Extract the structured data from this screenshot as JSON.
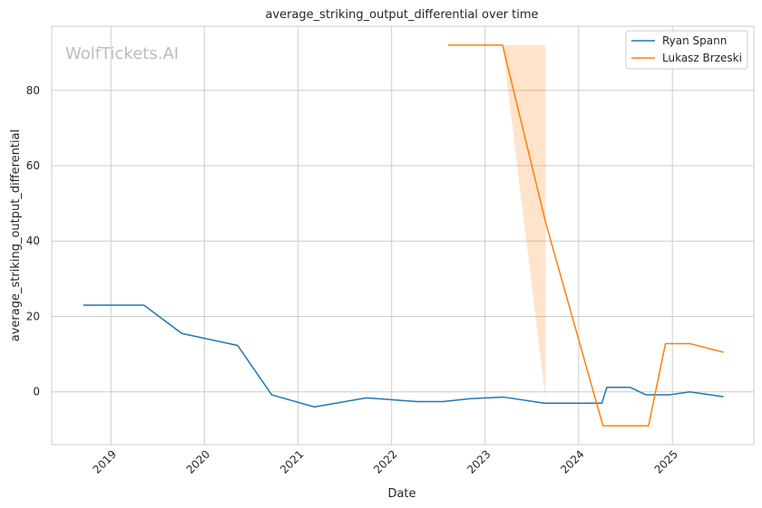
{
  "watermark": "WolfTickets.AI",
  "chart_data": {
    "type": "line",
    "title": "average_striking_output_differential over time",
    "xlabel": "Date",
    "ylabel": "average_striking_output_differential",
    "x_type": "date",
    "xlim": [
      "2018-05-15",
      "2025-11-15"
    ],
    "ylim": [
      -14,
      97
    ],
    "x_ticks": [
      {
        "label": "2019",
        "date": "2019-01-01"
      },
      {
        "label": "2020",
        "date": "2020-01-01"
      },
      {
        "label": "2021",
        "date": "2021-01-01"
      },
      {
        "label": "2022",
        "date": "2022-01-01"
      },
      {
        "label": "2023",
        "date": "2023-01-01"
      },
      {
        "label": "2024",
        "date": "2024-01-01"
      },
      {
        "label": "2025",
        "date": "2025-01-01"
      }
    ],
    "y_ticks": [
      0,
      20,
      40,
      60,
      80
    ],
    "grid": true,
    "legend_position": "top-right",
    "series": [
      {
        "name": "Ryan Spann",
        "color": "#1f77b4",
        "points": [
          {
            "x": "2018-09-15",
            "y": 23
          },
          {
            "x": "2019-05-10",
            "y": 23
          },
          {
            "x": "2019-10-05",
            "y": 15.5
          },
          {
            "x": "2020-05-10",
            "y": 12.3
          },
          {
            "x": "2020-09-20",
            "y": -0.8
          },
          {
            "x": "2021-03-05",
            "y": -4
          },
          {
            "x": "2021-09-25",
            "y": -1.6
          },
          {
            "x": "2022-04-10",
            "y": -2.6
          },
          {
            "x": "2022-07-20",
            "y": -2.6
          },
          {
            "x": "2022-11-05",
            "y": -1.8
          },
          {
            "x": "2023-03-15",
            "y": -1.4
          },
          {
            "x": "2023-08-20",
            "y": -3
          },
          {
            "x": "2024-01-15",
            "y": -3
          },
          {
            "x": "2024-04-01",
            "y": -3
          },
          {
            "x": "2024-04-20",
            "y": 1.2
          },
          {
            "x": "2024-07-20",
            "y": 1.2
          },
          {
            "x": "2024-09-20",
            "y": -0.8
          },
          {
            "x": "2024-12-20",
            "y": -0.8
          },
          {
            "x": "2025-03-10",
            "y": 0
          },
          {
            "x": "2025-07-20",
            "y": -1.3
          }
        ]
      },
      {
        "name": "Lukasz Brzeski",
        "color": "#ff7f0e",
        "points": [
          {
            "x": "2022-08-10",
            "y": 92
          },
          {
            "x": "2023-03-10",
            "y": 92
          },
          {
            "x": "2023-08-25",
            "y": 45
          },
          {
            "x": "2024-04-05",
            "y": -9
          },
          {
            "x": "2024-09-30",
            "y": -9
          },
          {
            "x": "2024-12-05",
            "y": 12.8
          },
          {
            "x": "2025-03-10",
            "y": 12.8
          },
          {
            "x": "2025-07-20",
            "y": 10.5
          }
        ],
        "band": [
          {
            "x": "2023-03-10",
            "low": 92,
            "high": 92
          },
          {
            "x": "2023-08-25",
            "low": -2,
            "high": 92
          }
        ]
      }
    ]
  }
}
